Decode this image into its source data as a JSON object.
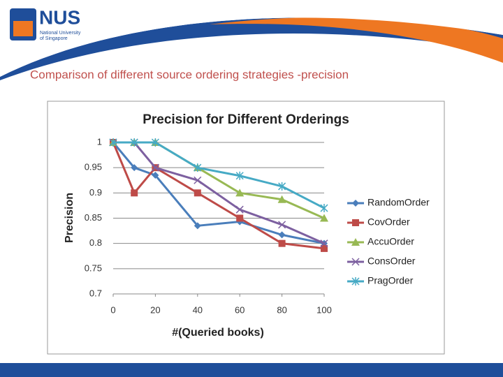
{
  "slide": {
    "logo_text": "NUS",
    "logo_line1": "National University",
    "logo_line2": "of Singapore",
    "title": "Comparison of different source ordering strategies -precision"
  },
  "chart_data": {
    "type": "line",
    "title": "Precision for Different Orderings",
    "x_label": "#(Queried books)",
    "y_label": "Precision",
    "x": [
      0,
      10,
      20,
      40,
      60,
      80,
      100
    ],
    "xlim": [
      0,
      100
    ],
    "xticks": [
      0,
      20,
      40,
      60,
      80,
      100
    ],
    "ylim": [
      0.7,
      1
    ],
    "yticks": [
      0.7,
      0.75,
      0.8,
      0.85,
      0.9,
      0.95,
      1
    ],
    "grid": true,
    "legend": "right",
    "series": [
      {
        "name": "RandomOrder",
        "color": "#4a7ebb",
        "marker": "diamond",
        "values": [
          1,
          0.95,
          0.935,
          0.835,
          0.843,
          0.817,
          0.8
        ]
      },
      {
        "name": "CovOrder",
        "color": "#be4b48",
        "marker": "square",
        "values": [
          1,
          0.9,
          0.95,
          0.9,
          0.85,
          0.8,
          0.79
        ]
      },
      {
        "name": "AccuOrder",
        "color": "#98b954",
        "marker": "triangle",
        "values": [
          1,
          1,
          1,
          0.95,
          0.9,
          0.887,
          0.85
        ]
      },
      {
        "name": "ConsOrder",
        "color": "#7d60a0",
        "marker": "x",
        "values": [
          1,
          1,
          0.95,
          0.925,
          0.867,
          0.837,
          0.8
        ]
      },
      {
        "name": "PragOrder",
        "color": "#46aac5",
        "marker": "star",
        "values": [
          1,
          1,
          1,
          0.95,
          0.934,
          0.913,
          0.87
        ]
      }
    ]
  }
}
